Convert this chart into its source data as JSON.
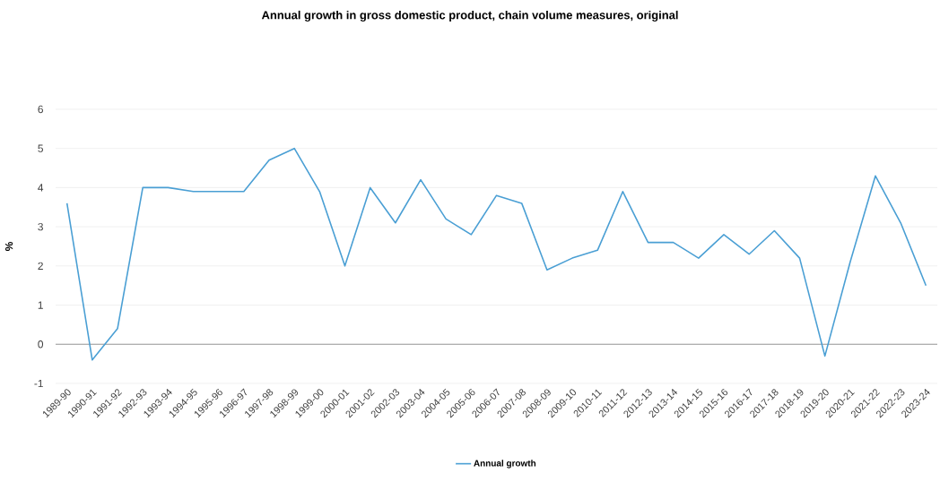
{
  "chart_data": {
    "type": "line",
    "title": "Annual growth in gross domestic product, chain volume measures, original",
    "ylabel": "%",
    "categories": [
      "1989-90",
      "1990-91",
      "1991-92",
      "1992-93",
      "1993-94",
      "1994-95",
      "1995-96",
      "1996-97",
      "1997-98",
      "1998-99",
      "1999-00",
      "2000-01",
      "2001-02",
      "2002-03",
      "2003-04",
      "2004-05",
      "2005-06",
      "2006-07",
      "2007-08",
      "2008-09",
      "2009-10",
      "2010-11",
      "2011-12",
      "2012-13",
      "2013-14",
      "2014-15",
      "2015-16",
      "2016-17",
      "2017-18",
      "2018-19",
      "2019-20",
      "2020-21",
      "2021-22",
      "2022-23",
      "2023-24"
    ],
    "series": [
      {
        "name": "Annual growth",
        "color": "#4a9fd4",
        "values": [
          3.6,
          -0.4,
          0.4,
          4.0,
          4.0,
          3.9,
          3.9,
          3.9,
          4.7,
          5.0,
          3.9,
          2.0,
          4.0,
          3.1,
          4.2,
          3.2,
          2.8,
          3.8,
          3.6,
          1.9,
          2.2,
          2.4,
          3.9,
          2.6,
          2.6,
          2.2,
          2.8,
          2.3,
          2.9,
          2.2,
          -0.3,
          2.1,
          4.3,
          3.1,
          1.5
        ]
      }
    ],
    "ylim": [
      -1,
      6
    ],
    "yticks": [
      -1,
      0,
      1,
      2,
      3,
      4,
      5,
      6
    ],
    "ref_lines": [
      {
        "axis": "y",
        "value": 0,
        "color": "#999999"
      }
    ],
    "grid": "y",
    "legend": "bottom",
    "marker": "none",
    "line_style": "solid"
  }
}
